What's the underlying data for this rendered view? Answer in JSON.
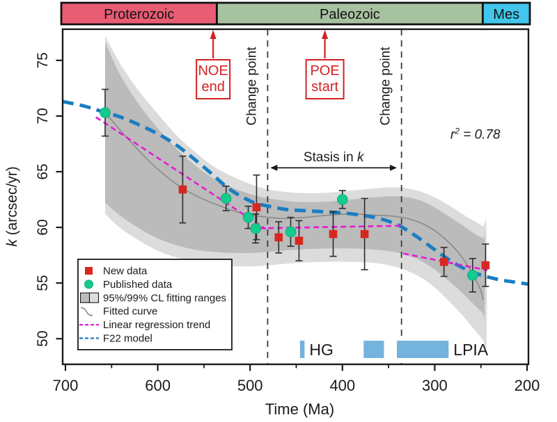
{
  "chart_data": {
    "type": "line",
    "title": "",
    "xlabel": "Time (Ma)",
    "ylabel_parts": [
      {
        "text": "k",
        "italic": true
      },
      {
        "text": " (arcsec/yr)",
        "italic": false
      }
    ],
    "xlim": [
      703,
      198.5
    ],
    "ylim": [
      47.7,
      77.8
    ],
    "x_axis_reversed": true,
    "grid": false,
    "x_ticks": [
      700,
      600,
      500,
      400,
      300,
      200
    ],
    "x_minor_ticks": [
      650,
      550,
      450,
      350,
      250
    ],
    "y_ticks": [
      50,
      55,
      60,
      65,
      70,
      75
    ],
    "colors": {
      "axis": "#1a1a1a",
      "new_data": "#d7281f",
      "published_data": "#13cb8e",
      "published_data_edge": "#0fae79",
      "fitted_curve": "#8a8a8a",
      "linear_regression": "#e619d6",
      "f22_model": "#1a7ec2",
      "band_95": "#bbbbbb",
      "band_99": "#dcdcdc",
      "annotation_red": "#d42020",
      "glacial_bar": "#74b3db",
      "proterozoic": "#e85c74",
      "paleozoic": "#a7c2a0",
      "mesozoic": "#42c6ec",
      "error_bar": "#2b2b2b"
    },
    "series": [
      {
        "name": "New data",
        "type": "scatter",
        "marker": "square",
        "color_key": "new_data",
        "points": [
          [
            573,
            63.4,
            3.0
          ],
          [
            493,
            61.8,
            2.9
          ],
          [
            469,
            59.1,
            1.4
          ],
          [
            447,
            58.8,
            1.8
          ],
          [
            410,
            59.4,
            2.0
          ],
          [
            376,
            59.4,
            3.2
          ],
          [
            290,
            56.9,
            1.3
          ],
          [
            245,
            56.6,
            1.9
          ]
        ]
      },
      {
        "name": "Published data",
        "type": "scatter",
        "marker": "circle",
        "color_key": "published_data",
        "points": [
          [
            657,
            70.3,
            2.1
          ],
          [
            526,
            62.6,
            1.1
          ],
          [
            502,
            60.9,
            1.0
          ],
          [
            494,
            59.9,
            1.3
          ],
          [
            456,
            59.6,
            1.3
          ],
          [
            400,
            62.5,
            0.8
          ],
          [
            259,
            55.7,
            1.5
          ]
        ]
      },
      {
        "name": "Fitted curve",
        "type": "line",
        "color_key": "fitted_curve",
        "points": [
          [
            657,
            70.3
          ],
          [
            635,
            68.2
          ],
          [
            610,
            66.0
          ],
          [
            585,
            64.2
          ],
          [
            560,
            62.9
          ],
          [
            535,
            62.0
          ],
          [
            510,
            61.3
          ],
          [
            490,
            61.0
          ],
          [
            465,
            60.8
          ],
          [
            440,
            60.9
          ],
          [
            415,
            61.1
          ],
          [
            390,
            61.2
          ],
          [
            365,
            61.1
          ],
          [
            345,
            61.0
          ],
          [
            330,
            60.8
          ],
          [
            315,
            60.4
          ],
          [
            300,
            59.7
          ],
          [
            288,
            58.9
          ],
          [
            275,
            57.8
          ],
          [
            263,
            56.4
          ],
          [
            255,
            55.2
          ],
          [
            250,
            54.3
          ],
          [
            247.5,
            53.5
          ]
        ]
      },
      {
        "name": "Linear regression trend",
        "type": "dashed-line",
        "color_key": "linear_regression",
        "segments": [
          [
            [
              667,
              69.9
            ],
            [
              483,
              59.85
            ]
          ],
          [
            [
              500,
              59.9
            ],
            [
              336,
              60.15
            ]
          ],
          [
            [
              334,
              57.65
            ],
            [
              243,
              56.15
            ]
          ]
        ]
      },
      {
        "name": "F22 model",
        "type": "dashed-line",
        "color_key": "f22_model",
        "points": [
          [
            703,
            71.3
          ],
          [
            680,
            70.9
          ],
          [
            660,
            70.4
          ],
          [
            640,
            69.9
          ],
          [
            620,
            69.2
          ],
          [
            600,
            68.4
          ],
          [
            580,
            67.4
          ],
          [
            560,
            66.1
          ],
          [
            540,
            64.7
          ],
          [
            525,
            63.6
          ],
          [
            510,
            62.8
          ],
          [
            495,
            62.2
          ],
          [
            480,
            61.9
          ],
          [
            460,
            61.6
          ],
          [
            440,
            61.5
          ],
          [
            420,
            61.4
          ],
          [
            400,
            61.3
          ],
          [
            380,
            61.1
          ],
          [
            360,
            60.8
          ],
          [
            345,
            60.4
          ],
          [
            335,
            60.0
          ],
          [
            320,
            59.2
          ],
          [
            305,
            58.3
          ],
          [
            290,
            57.4
          ],
          [
            275,
            56.6
          ],
          [
            260,
            56.0
          ],
          [
            245,
            55.6
          ],
          [
            230,
            55.3
          ],
          [
            215,
            55.1
          ],
          [
            198.5,
            54.9
          ]
        ]
      }
    ],
    "confidence_bands": [
      {
        "name": "99% CL",
        "color_key": "band_99",
        "upper": [
          [
            657,
            77.2
          ],
          [
            640,
            74.6
          ],
          [
            620,
            72.2
          ],
          [
            600,
            70.2
          ],
          [
            580,
            68.3
          ],
          [
            560,
            66.8
          ],
          [
            540,
            65.5
          ],
          [
            520,
            64.6
          ],
          [
            500,
            63.9
          ],
          [
            480,
            63.4
          ],
          [
            450,
            63.1
          ],
          [
            420,
            63.1
          ],
          [
            390,
            63.3
          ],
          [
            365,
            63.5
          ],
          [
            345,
            63.6
          ],
          [
            330,
            63.5
          ],
          [
            315,
            63.2
          ],
          [
            300,
            62.7
          ],
          [
            285,
            62.0
          ],
          [
            270,
            61.2
          ],
          [
            258,
            60.6
          ],
          [
            248,
            60.1
          ],
          [
            244,
            59.8
          ]
        ],
        "lower": [
          [
            657,
            61.2
          ],
          [
            640,
            59.9
          ],
          [
            620,
            58.8
          ],
          [
            600,
            57.9
          ],
          [
            580,
            57.3
          ],
          [
            560,
            56.9
          ],
          [
            540,
            56.6
          ],
          [
            520,
            56.5
          ],
          [
            500,
            56.5
          ],
          [
            480,
            56.6
          ],
          [
            450,
            56.8
          ],
          [
            420,
            56.9
          ],
          [
            390,
            56.9
          ],
          [
            365,
            56.8
          ],
          [
            345,
            56.5
          ],
          [
            330,
            56.1
          ],
          [
            315,
            55.5
          ],
          [
            300,
            54.6
          ],
          [
            285,
            53.4
          ],
          [
            270,
            52.1
          ],
          [
            258,
            50.9
          ],
          [
            248,
            49.9
          ],
          [
            244,
            49.4
          ]
        ]
      },
      {
        "name": "95% CL",
        "color_key": "band_95",
        "upper": [
          [
            657,
            76.6
          ],
          [
            640,
            73.6
          ],
          [
            620,
            71.0
          ],
          [
            600,
            68.9
          ],
          [
            580,
            67.1
          ],
          [
            560,
            65.6
          ],
          [
            540,
            64.4
          ],
          [
            520,
            63.6
          ],
          [
            500,
            63.0
          ],
          [
            480,
            62.6
          ],
          [
            450,
            62.3
          ],
          [
            420,
            62.3
          ],
          [
            390,
            62.5
          ],
          [
            365,
            62.7
          ],
          [
            345,
            62.8
          ],
          [
            330,
            62.7
          ],
          [
            315,
            62.4
          ],
          [
            300,
            61.8
          ],
          [
            285,
            61.0
          ],
          [
            270,
            60.2
          ],
          [
            258,
            59.5
          ],
          [
            248,
            59.0
          ],
          [
            246,
            58.8
          ]
        ],
        "lower": [
          [
            657,
            62.2
          ],
          [
            640,
            61.0
          ],
          [
            620,
            59.9
          ],
          [
            600,
            59.0
          ],
          [
            580,
            58.4
          ],
          [
            560,
            58.0
          ],
          [
            540,
            57.8
          ],
          [
            520,
            57.7
          ],
          [
            500,
            57.7
          ],
          [
            480,
            57.8
          ],
          [
            450,
            58.0
          ],
          [
            420,
            58.1
          ],
          [
            390,
            58.1
          ],
          [
            365,
            58.0
          ],
          [
            345,
            57.8
          ],
          [
            330,
            57.5
          ],
          [
            315,
            57.0
          ],
          [
            300,
            56.2
          ],
          [
            285,
            55.2
          ],
          [
            270,
            54.1
          ],
          [
            258,
            53.1
          ],
          [
            248,
            52.3
          ],
          [
            246,
            52.0
          ]
        ]
      }
    ],
    "change_points": [
      {
        "t": 481,
        "label": "Change point"
      },
      {
        "t": 336,
        "label": "Change point"
      }
    ],
    "annotations": {
      "noe": {
        "lines": [
          "NOE",
          "end"
        ],
        "t": 540
      },
      "poe": {
        "lines": [
          "POE",
          "start"
        ],
        "t": 419
      },
      "stasis": {
        "parts": [
          {
            "text": "Stasis in ",
            "italic": false
          },
          {
            "text": "k",
            "italic": true
          }
        ],
        "t_from": 478,
        "t_to": 341,
        "k_arrow": 65.35,
        "k_text": 65.95
      },
      "r_squared": {
        "parts": [
          {
            "text": "r",
            "italic": true
          },
          {
            "text": "2",
            "italic": true,
            "sup": true
          },
          {
            "text": " = 0.78",
            "italic": true
          }
        ],
        "t": 256,
        "k": 67.95
      }
    },
    "glacial_intervals": {
      "k_top": 49.82,
      "k_bottom": 48.26,
      "label_k_baseline": 48.5,
      "bars": [
        {
          "t_from": 446,
          "t_to": 441,
          "label": "HG"
        },
        {
          "t_from": 377,
          "t_to": 355,
          "label": ""
        },
        {
          "t_from": 341,
          "t_to": 285,
          "label": "LPIA"
        }
      ]
    },
    "geo_timescale": [
      {
        "label": "Proterozoic",
        "t_from": 703,
        "t_to": 536,
        "color_key": "proterozoic"
      },
      {
        "label": "Paleozoic",
        "t_from": 536,
        "t_to": 248,
        "color_key": "paleozoic"
      },
      {
        "label": "Mes",
        "t_from": 248,
        "t_to": 198.5,
        "color_key": "mesozoic"
      }
    ],
    "legend": {
      "items": [
        {
          "swatch": "square",
          "color_key": "new_data",
          "label": "New data"
        },
        {
          "swatch": "circle",
          "color_key": "published_data",
          "label": "Published data"
        },
        {
          "swatch": "band",
          "color_key": "band_95",
          "color_key2": "band_99",
          "label": "95%/99% CL fitting ranges"
        },
        {
          "swatch": "curve",
          "color_key": "fitted_curve",
          "label": "Fitted curve"
        },
        {
          "swatch": "dash",
          "color_key": "linear_regression",
          "label": "Linear regression trend"
        },
        {
          "swatch": "dash",
          "color_key": "f22_model",
          "label": "F22 model"
        }
      ]
    }
  }
}
